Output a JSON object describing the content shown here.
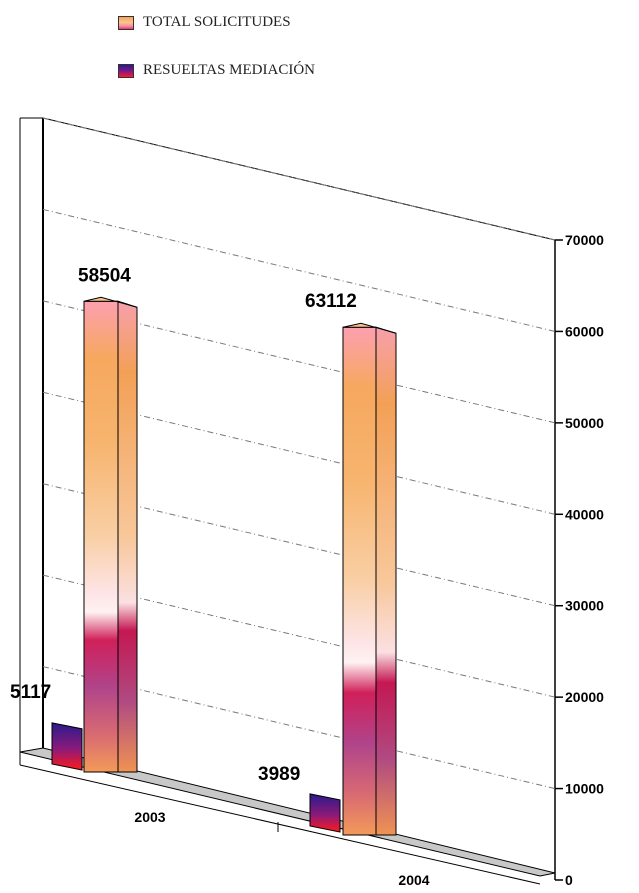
{
  "legend": {
    "items": [
      {
        "label": "TOTAL SOLICITUDES",
        "color": "#f7a95a"
      },
      {
        "label": "RESUELTAS MEDIACIÓN",
        "color": "#3a1a8a"
      }
    ]
  },
  "chart_data": {
    "type": "bar",
    "categories": [
      "2003",
      "2004"
    ],
    "series": [
      {
        "name": "TOTAL SOLICITUDES",
        "values": [
          58504,
          63112
        ]
      },
      {
        "name": "RESUELTAS MEDIACIÓN",
        "values": [
          5117,
          3989
        ]
      }
    ],
    "y_ticks": [
      "0",
      "10000",
      "20000",
      "30000",
      "40000",
      "50000",
      "60000",
      "70000"
    ],
    "ylim": [
      0,
      70000
    ],
    "grid": true,
    "legend_position": "top-left",
    "style": "3d-perspective",
    "colors": {
      "total_top": "#f6a05e",
      "total_mid": "#f9c98a",
      "total_pink": "#fde6ea",
      "total_bottom": "#c8104e",
      "resueltas_top": "#2a1a8c",
      "resueltas_bottom": "#ff1a2a",
      "gridline": "#888888"
    }
  }
}
